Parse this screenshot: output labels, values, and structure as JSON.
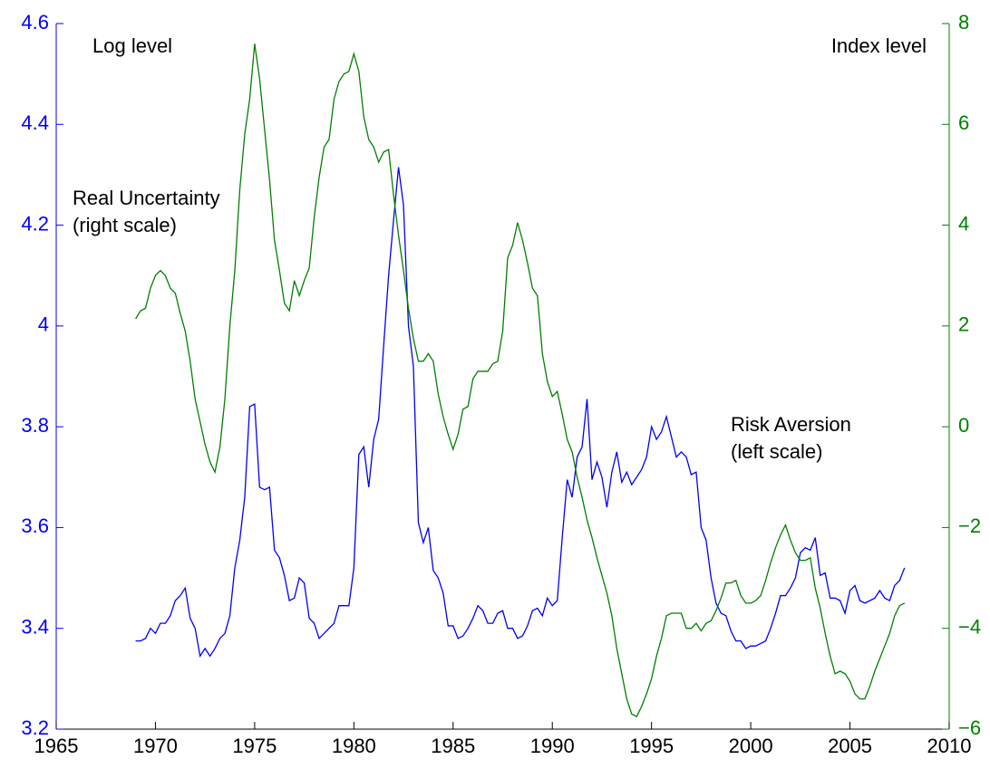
{
  "chart_data": {
    "type": "line",
    "annotations": [
      [
        "Log level"
      ],
      [
        "Index level"
      ],
      [
        "Real Uncertainty",
        "(right scale)"
      ],
      [
        "Risk Aversion",
        "(left scale)"
      ]
    ],
    "x": [
      1969,
      1969.25,
      1969.5,
      1969.75,
      1970,
      1970.25,
      1970.5,
      1970.75,
      1971,
      1971.25,
      1971.5,
      1971.75,
      1972,
      1972.25,
      1972.5,
      1972.75,
      1973,
      1973.25,
      1973.5,
      1973.75,
      1974,
      1974.25,
      1974.5,
      1974.75,
      1975,
      1975.25,
      1975.5,
      1975.75,
      1976,
      1976.25,
      1976.5,
      1976.75,
      1977,
      1977.25,
      1977.5,
      1977.75,
      1978,
      1978.25,
      1978.5,
      1978.75,
      1979,
      1979.25,
      1979.5,
      1979.75,
      1980,
      1980.25,
      1980.5,
      1980.75,
      1981,
      1981.25,
      1981.5,
      1981.75,
      1982,
      1982.25,
      1982.5,
      1982.75,
      1983,
      1983.25,
      1983.5,
      1983.75,
      1984,
      1984.25,
      1984.5,
      1984.75,
      1985,
      1985.25,
      1985.5,
      1985.75,
      1986,
      1986.25,
      1986.5,
      1986.75,
      1987,
      1987.25,
      1987.5,
      1987.75,
      1988,
      1988.25,
      1988.5,
      1988.75,
      1989,
      1989.25,
      1989.5,
      1989.75,
      1990,
      1990.25,
      1990.5,
      1990.75,
      1991,
      1991.25,
      1991.5,
      1991.75,
      1992,
      1992.25,
      1992.5,
      1992.75,
      1993,
      1993.25,
      1993.5,
      1993.75,
      1994,
      1994.25,
      1994.5,
      1994.75,
      1995,
      1995.25,
      1995.5,
      1995.75,
      1996,
      1996.25,
      1996.5,
      1996.75,
      1997,
      1997.25,
      1997.5,
      1997.75,
      1998,
      1998.25,
      1998.5,
      1998.75,
      1999,
      1999.25,
      1999.5,
      1999.75,
      2000,
      2000.25,
      2000.5,
      2000.75,
      2001,
      2001.25,
      2001.5,
      2001.75,
      2002,
      2002.25,
      2002.5,
      2002.75,
      2003,
      2003.25,
      2003.5,
      2003.75,
      2004,
      2004.25,
      2004.5,
      2004.75,
      2005,
      2005.25,
      2005.5,
      2005.75,
      2006,
      2006.25,
      2006.5,
      2006.75,
      2007,
      2007.25,
      2007.5,
      2007.75
    ],
    "series": [
      {
        "color": "#0000ff",
        "axis": "y",
        "values": [
          3.375,
          3.375,
          3.38,
          3.4,
          3.39,
          3.41,
          3.41,
          3.425,
          3.455,
          3.465,
          3.48,
          3.42,
          3.4,
          3.345,
          3.36,
          3.345,
          3.36,
          3.38,
          3.39,
          3.425,
          3.52,
          3.575,
          3.66,
          3.84,
          3.845,
          3.68,
          3.675,
          3.68,
          3.555,
          3.54,
          3.505,
          3.455,
          3.46,
          3.5,
          3.49,
          3.42,
          3.41,
          3.38,
          3.39,
          3.4,
          3.41,
          3.445,
          3.445,
          3.445,
          3.52,
          3.745,
          3.76,
          3.68,
          3.775,
          3.815,
          3.96,
          4.1,
          4.21,
          4.315,
          4.24,
          4.0,
          3.92,
          3.61,
          3.57,
          3.6,
          3.515,
          3.5,
          3.47,
          3.405,
          3.405,
          3.38,
          3.385,
          3.4,
          3.42,
          3.445,
          3.435,
          3.41,
          3.41,
          3.43,
          3.435,
          3.4,
          3.4,
          3.38,
          3.385,
          3.405,
          3.435,
          3.44,
          3.425,
          3.46,
          3.445,
          3.455,
          3.58,
          3.695,
          3.66,
          3.74,
          3.76,
          3.855,
          3.695,
          3.73,
          3.7,
          3.64,
          3.71,
          3.75,
          3.69,
          3.71,
          3.685,
          3.7,
          3.715,
          3.74,
          3.8,
          3.775,
          3.79,
          3.82,
          3.78,
          3.74,
          3.75,
          3.74,
          3.705,
          3.71,
          3.6,
          3.575,
          3.5,
          3.45,
          3.43,
          3.425,
          3.395,
          3.375,
          3.375,
          3.36,
          3.365,
          3.365,
          3.37,
          3.375,
          3.4,
          3.43,
          3.465,
          3.465,
          3.48,
          3.5,
          3.55,
          3.56,
          3.555,
          3.58,
          3.505,
          3.51,
          3.46,
          3.46,
          3.455,
          3.43,
          3.475,
          3.485,
          3.455,
          3.45,
          3.455,
          3.46,
          3.475,
          3.46,
          3.455,
          3.485,
          3.495,
          3.52
        ]
      },
      {
        "color": "#008000",
        "axis": "y2",
        "values": [
          2.14,
          2.3,
          2.35,
          2.75,
          3.0,
          3.1,
          3.0,
          2.75,
          2.65,
          2.25,
          1.9,
          1.3,
          0.55,
          0.1,
          -0.35,
          -0.7,
          -0.9,
          -0.4,
          0.55,
          2.0,
          3.1,
          4.7,
          5.8,
          6.5,
          7.6,
          6.9,
          5.9,
          4.9,
          3.7,
          3.1,
          2.45,
          2.3,
          2.9,
          2.6,
          2.9,
          3.15,
          4.15,
          4.95,
          5.55,
          5.7,
          6.5,
          6.85,
          7.0,
          7.05,
          7.4,
          7.05,
          6.15,
          5.7,
          5.55,
          5.25,
          5.45,
          5.5,
          4.6,
          3.8,
          3.1,
          2.35,
          1.75,
          1.3,
          1.3,
          1.45,
          1.3,
          0.65,
          0.2,
          -0.15,
          -0.45,
          -0.15,
          0.35,
          0.4,
          0.95,
          1.1,
          1.1,
          1.1,
          1.25,
          1.3,
          1.9,
          3.35,
          3.6,
          4.05,
          3.7,
          3.25,
          2.75,
          2.6,
          1.45,
          0.9,
          0.6,
          0.7,
          0.25,
          -0.25,
          -0.5,
          -1.0,
          -1.4,
          -1.85,
          -2.2,
          -2.6,
          -2.95,
          -3.3,
          -3.75,
          -4.4,
          -4.9,
          -5.4,
          -5.7,
          -5.75,
          -5.55,
          -5.3,
          -5.0,
          -4.55,
          -4.2,
          -3.75,
          -3.7,
          -3.7,
          -3.7,
          -4.0,
          -4.0,
          -3.9,
          -4.05,
          -3.9,
          -3.85,
          -3.65,
          -3.4,
          -3.1,
          -3.1,
          -3.05,
          -3.35,
          -3.5,
          -3.5,
          -3.45,
          -3.35,
          -3.05,
          -2.7,
          -2.4,
          -2.15,
          -1.95,
          -2.25,
          -2.5,
          -2.65,
          -2.65,
          -2.6,
          -3.2,
          -3.6,
          -4.1,
          -4.55,
          -4.9,
          -4.85,
          -4.9,
          -5.05,
          -5.3,
          -5.4,
          -5.4,
          -5.15,
          -4.85,
          -4.6,
          -4.35,
          -4.1,
          -3.75,
          -3.55,
          -3.5
        ]
      }
    ],
    "xlim": [
      1965,
      2010
    ],
    "xticks": [
      1965,
      1970,
      1975,
      1980,
      1985,
      1990,
      1995,
      2000,
      2005,
      2010
    ],
    "ylim": [
      3.2,
      4.6
    ],
    "yticks": [
      3.2,
      3.4,
      3.6,
      3.8,
      4,
      4.2,
      4.4,
      4.6
    ],
    "y2lim": [
      -6,
      8
    ],
    "y2ticks": [
      {
        "value": -6,
        "label": "−6"
      },
      {
        "value": -4,
        "label": "−4"
      },
      {
        "value": -2,
        "label": "−2"
      },
      0,
      2,
      4,
      6,
      8
    ],
    "y_color": "#0000ff",
    "y2_color": "#008000",
    "grid": false
  }
}
